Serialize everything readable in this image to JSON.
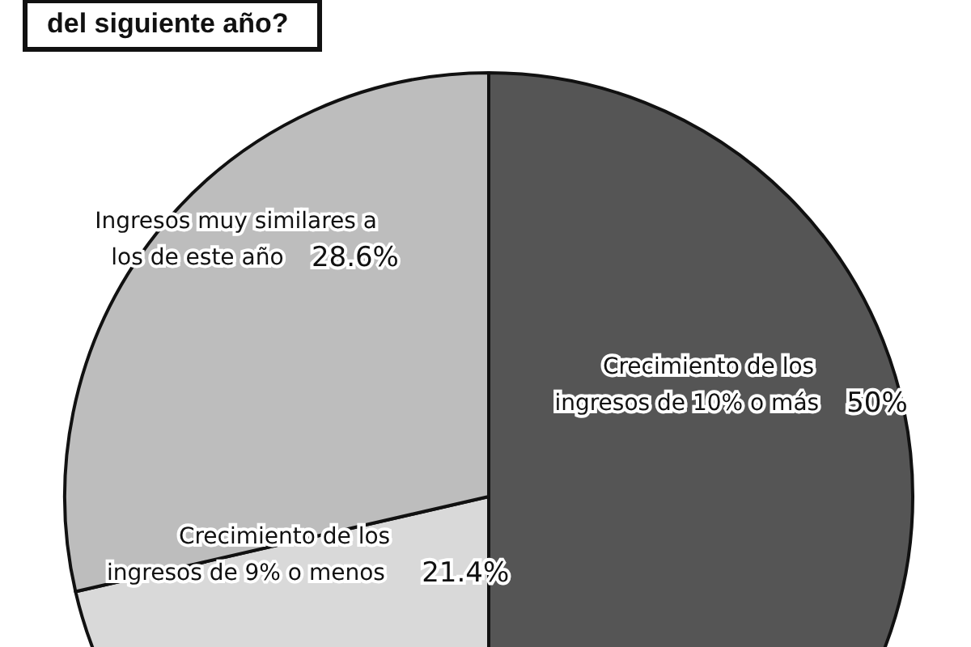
{
  "chart_data": {
    "type": "pie",
    "title": "del siguiente año?",
    "categories": [
      "Crecimiento de los ingresos de 10% o más",
      "Crecimiento de los ingresos de 9% o menos",
      "Ingresos muy similares a los de este año"
    ],
    "values": [
      50,
      21.4,
      28.6
    ],
    "colors": [
      "#555555",
      "#d9d9d9",
      "#bdbdbd"
    ],
    "value_labels": [
      "50%",
      "21.4%",
      "28.6%"
    ],
    "legend": false
  }
}
